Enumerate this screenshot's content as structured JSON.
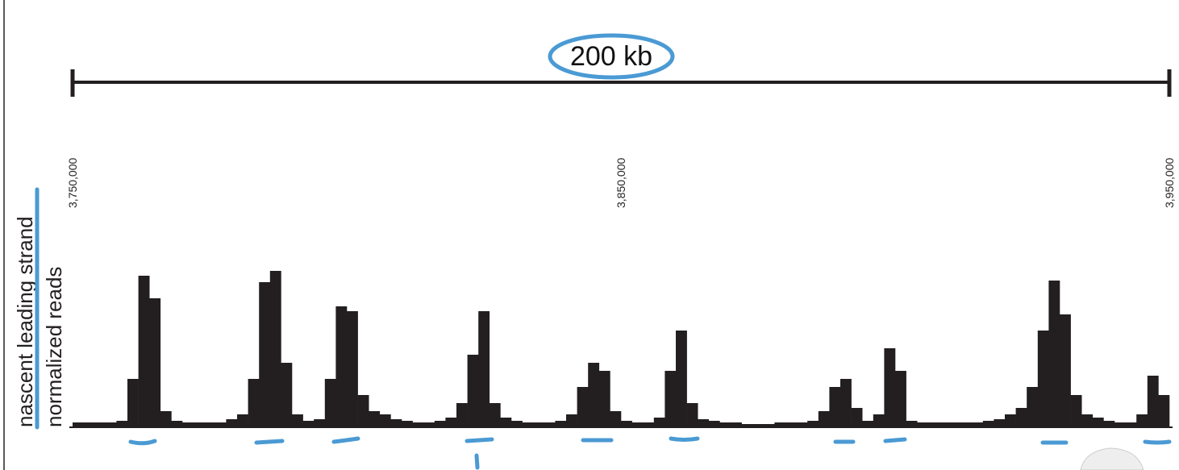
{
  "chart_data": {
    "type": "histogram",
    "scale_bar_label": "200 kb",
    "ylabel": [
      "nascent leading strand",
      "normalized reads"
    ],
    "xlim": [
      3750000,
      3950000
    ],
    "xticks": [
      {
        "value": 3750000,
        "label": "3,750,000"
      },
      {
        "value": 3850000,
        "label": "3,850,000"
      },
      {
        "value": 3950000,
        "label": "3,950,000"
      }
    ],
    "ylim": [
      0,
      100
    ],
    "color": "#231f20",
    "bins": [
      3750000,
      3752000,
      3754000,
      3756000,
      3758000,
      3760000,
      3762000,
      3764000,
      3766000,
      3768000,
      3770000,
      3772000,
      3774000,
      3776000,
      3778000,
      3780000,
      3782000,
      3784000,
      3786000,
      3788000,
      3790000,
      3792000,
      3794000,
      3796000,
      3798000,
      3800000,
      3802000,
      3804000,
      3806000,
      3808000,
      3810000,
      3812000,
      3814000,
      3816000,
      3818000,
      3820000,
      3822000,
      3824000,
      3826000,
      3828000,
      3830000,
      3832000,
      3834000,
      3836000,
      3838000,
      3840000,
      3842000,
      3844000,
      3846000,
      3848000,
      3850000,
      3852000,
      3854000,
      3856000,
      3858000,
      3860000,
      3862000,
      3864000,
      3866000,
      3868000,
      3870000,
      3872000,
      3874000,
      3876000,
      3878000,
      3880000,
      3882000,
      3884000,
      3886000,
      3888000,
      3890000,
      3892000,
      3894000,
      3896000,
      3898000,
      3900000,
      3902000,
      3904000,
      3906000,
      3908000,
      3910000,
      3912000,
      3914000,
      3916000,
      3918000,
      3920000,
      3922000,
      3924000,
      3926000,
      3928000,
      3930000,
      3932000,
      3934000,
      3936000,
      3938000,
      3940000,
      3942000,
      3944000,
      3946000,
      3948000,
      3950000
    ],
    "values": [
      3,
      3,
      3,
      3,
      4,
      30,
      94,
      80,
      10,
      4,
      3,
      3,
      3,
      3,
      5,
      8,
      30,
      90,
      97,
      40,
      8,
      4,
      5,
      30,
      75,
      72,
      20,
      10,
      8,
      5,
      4,
      3,
      3,
      4,
      6,
      15,
      45,
      72,
      15,
      6,
      4,
      3,
      3,
      3,
      4,
      8,
      25,
      40,
      35,
      10,
      4,
      3,
      3,
      6,
      35,
      60,
      15,
      5,
      4,
      3,
      3,
      2,
      2,
      2,
      3,
      3,
      3,
      4,
      10,
      25,
      30,
      12,
      4,
      8,
      49,
      35,
      4,
      3,
      3,
      3,
      3,
      3,
      3,
      4,
      5,
      8,
      12,
      25,
      60,
      91,
      70,
      20,
      8,
      6,
      4,
      3,
      3,
      8,
      32,
      20
    ]
  }
}
